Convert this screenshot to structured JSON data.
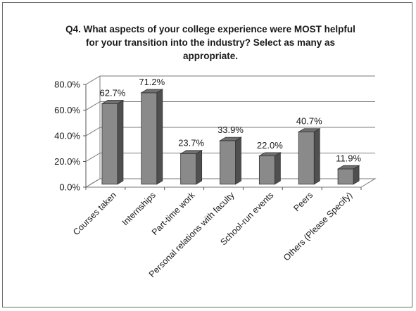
{
  "chart_data": {
    "type": "bar",
    "title_lines": [
      "Q4.  What aspects of your college experience were MOST helpful",
      "for your transition into the industry? Select as many as",
      "appropriate."
    ],
    "categories": [
      "Courses taken",
      "Internships",
      "Part-time work",
      "Personal relations with faculty",
      "School-run events",
      "Peers",
      "Others (Please Specify)"
    ],
    "values": [
      62.7,
      71.2,
      23.7,
      33.9,
      22.0,
      40.7,
      11.9
    ],
    "data_labels": [
      "62.7%",
      "71.2%",
      "23.7%",
      "33.9%",
      "22.0%",
      "40.7%",
      "11.9%"
    ],
    "y_ticks": [
      "0.0%",
      "20.0%",
      "40.0%",
      "60.0%",
      "80.0%"
    ],
    "ylim": [
      0,
      80
    ],
    "grid": true,
    "legend": "none",
    "colors": {
      "bar_front": "#8a8a8a",
      "bar_top": "#6f6f6f",
      "bar_side": "#4f4f4f",
      "gridline": "#7a7a7a"
    }
  }
}
